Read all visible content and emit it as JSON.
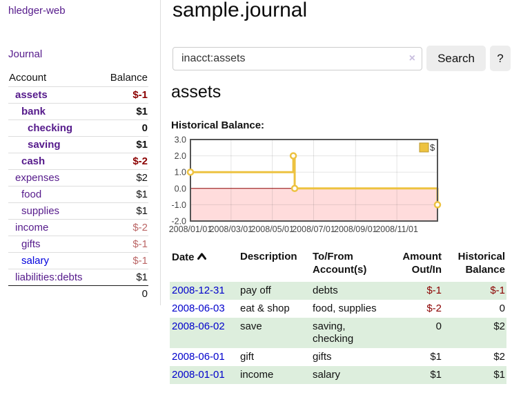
{
  "app": {
    "title": "hledger-web"
  },
  "sidebar": {
    "journal_label": "Journal",
    "accounts": {
      "headers": [
        "Account",
        "Balance"
      ],
      "rows": [
        {
          "name": "assets",
          "balance": "$-1"
        },
        {
          "name": "bank",
          "balance": "$1"
        },
        {
          "name": "checking",
          "balance": "0"
        },
        {
          "name": "saving",
          "balance": "$1"
        },
        {
          "name": "cash",
          "balance": "$-2"
        },
        {
          "name": "expenses",
          "balance": "$2"
        },
        {
          "name": "food",
          "balance": "$1"
        },
        {
          "name": "supplies",
          "balance": "$1"
        },
        {
          "name": "income",
          "balance": "$-2"
        },
        {
          "name": "gifts",
          "balance": "$-1"
        },
        {
          "name": "salary",
          "balance": "$-1"
        },
        {
          "name": "liabilities:debts",
          "balance": "$1"
        }
      ],
      "total": "0"
    }
  },
  "main": {
    "title": "sample.journal",
    "search": {
      "value": "inacct:assets",
      "clear_icon": "×",
      "button_label": "Search",
      "help_label": "?"
    },
    "account_heading": "assets",
    "chart_label": "Historical Balance:",
    "register": {
      "headers": [
        "Date",
        "Description",
        "To/From Account(s)",
        "Amount Out/In",
        "Historical Balance"
      ],
      "sort_icon": "sort-ascending",
      "rows": [
        {
          "date": "2008-12-31",
          "description": "pay off",
          "accounts": "debts",
          "amount": "$-1",
          "balance": "$-1"
        },
        {
          "date": "2008-06-03",
          "description": "eat & shop",
          "accounts": "food, supplies",
          "amount": "$-2",
          "balance": "0"
        },
        {
          "date": "2008-06-02",
          "description": "save",
          "accounts": "saving, checking",
          "amount": "0",
          "balance": "$2"
        },
        {
          "date": "2008-06-01",
          "description": "gift",
          "accounts": "gifts",
          "amount": "$1",
          "balance": "$2"
        },
        {
          "date": "2008-01-01",
          "description": "income",
          "accounts": "salary",
          "amount": "$1",
          "balance": "$1"
        }
      ]
    }
  },
  "chart_data": {
    "type": "line",
    "title": "Historical Balance",
    "steps": true,
    "xlim": [
      0,
      365
    ],
    "ylim": [
      -2,
      3
    ],
    "grid": true,
    "legend_position": "top-right",
    "legend_label": "$",
    "x_ticks": [
      {
        "x": 0,
        "label": "2008/01/01"
      },
      {
        "x": 60,
        "label": "2008/03/01"
      },
      {
        "x": 121,
        "label": "2008/05/01"
      },
      {
        "x": 182,
        "label": "2008/07/01"
      },
      {
        "x": 244,
        "label": "2008/09/01"
      },
      {
        "x": 305,
        "label": "2008/11/01"
      }
    ],
    "y_ticks": [
      {
        "v": 3,
        "label": "3.0"
      },
      {
        "v": 2,
        "label": "2.0"
      },
      {
        "v": 1,
        "label": "1.0"
      },
      {
        "v": 0,
        "label": "0.0"
      },
      {
        "v": -1,
        "label": "-1.0"
      },
      {
        "v": -2,
        "label": "-2.0"
      }
    ],
    "series": [
      {
        "name": "$",
        "color": "#edc240",
        "points": [
          {
            "date": "2008-01-01",
            "x": 0,
            "y": 1
          },
          {
            "date": "2008-06-01",
            "x": 152,
            "y": 2
          },
          {
            "date": "2008-06-03",
            "x": 154,
            "y": 0
          },
          {
            "date": "2008-12-31",
            "x": 365,
            "y": -1
          }
        ]
      }
    ],
    "colors": {
      "grid": "#545454",
      "border": "#545454",
      "negative_region": "#ffdcdc",
      "zero_line": "#8b0000",
      "tick_text": "#444444",
      "point_fill": "#ffffff",
      "legend_square_border": "#bb9a30"
    }
  },
  "colors": {
    "link_purple": "#551a8b",
    "link_blue": "#0000cc",
    "negative_strong": "#8b0000",
    "negative_soft": "#bb6666",
    "row_green": "#ddeedd"
  }
}
